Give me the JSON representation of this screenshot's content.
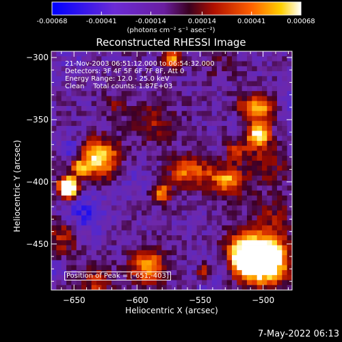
{
  "colorbar": {
    "ticks": [
      "-0.00068",
      "-0.00041",
      "-0.00014",
      "0.00014",
      "0.00041",
      "0.00068"
    ],
    "units_label": "(photons cm⁻² s⁻¹ asec⁻²)",
    "min": -0.00068,
    "max": 0.00068
  },
  "chart_data": {
    "type": "heatmap",
    "title": "Reconstructed RHESSI Image",
    "xlabel": "Heliocentric X (arcsec)",
    "ylabel": "Heliocentric Y (arcsec)",
    "xlim": [
      -668,
      -477
    ],
    "ylim": [
      -487,
      -295
    ],
    "x_ticks": [
      -650,
      -600,
      -550,
      -500
    ],
    "y_ticks": [
      -300,
      -350,
      -400,
      -450
    ],
    "peak": {
      "x": -651,
      "y": -403
    },
    "annotations": [
      "21-Nov-2003 06:51:12.000 to 06:54:32.000",
      "Detectors: 3F 4F 5F 6F 7F 8F, Att 0",
      "Energy Range: 12.0 - 25.0 keV",
      "Clean    Total counts: 1.87E+03"
    ],
    "peak_label": "Position of Peak = [-651,-403]"
  },
  "timestamp": "7-May-2022 06:13"
}
